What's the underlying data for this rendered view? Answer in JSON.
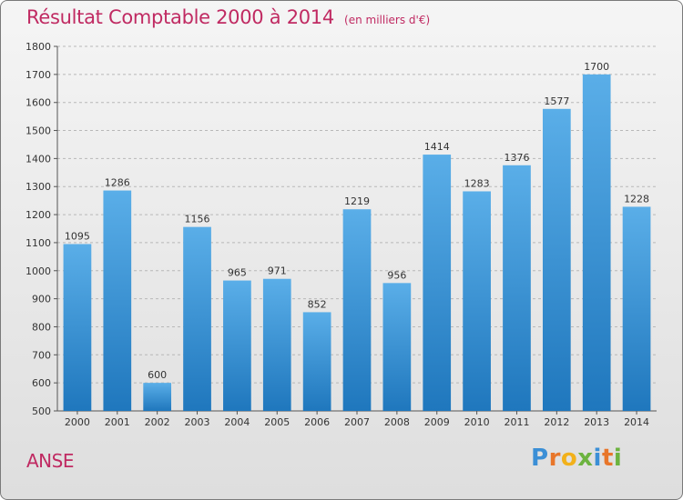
{
  "title": "Résultat Comptable 2000 à 2014",
  "subtitle": "(en milliers d'€)",
  "commune": "ANSE",
  "logo": {
    "text": "Proxiti",
    "letters": [
      {
        "char": "P",
        "color": "#3b8fd6"
      },
      {
        "char": "r",
        "color": "#e8762a"
      },
      {
        "char": "o",
        "color": "#f2b11b"
      },
      {
        "char": "x",
        "color": "#6cb33f"
      },
      {
        "char": "i",
        "color": "#3b8fd6"
      },
      {
        "char": "t",
        "color": "#e8762a"
      },
      {
        "char": "i",
        "color": "#6cb33f"
      }
    ]
  },
  "colors": {
    "title": "#c02a62",
    "bar_top": "#5aaee8",
    "bar_bottom": "#1f77bd",
    "grid": "#b8b8b8"
  },
  "chart_data": {
    "type": "bar",
    "categories": [
      "2000",
      "2001",
      "2002",
      "2003",
      "2004",
      "2005",
      "2006",
      "2007",
      "2008",
      "2009",
      "2010",
      "2011",
      "2012",
      "2013",
      "2014"
    ],
    "values": [
      1095,
      1286,
      600,
      1156,
      965,
      971,
      852,
      1219,
      956,
      1414,
      1283,
      1376,
      1577,
      1700,
      1228
    ],
    "ylim": [
      500,
      1800
    ],
    "yticks": [
      500,
      600,
      700,
      800,
      900,
      1000,
      1100,
      1200,
      1300,
      1400,
      1500,
      1600,
      1700,
      1800
    ],
    "grid": true,
    "data_labels": true,
    "xlabel": "",
    "ylabel": ""
  }
}
